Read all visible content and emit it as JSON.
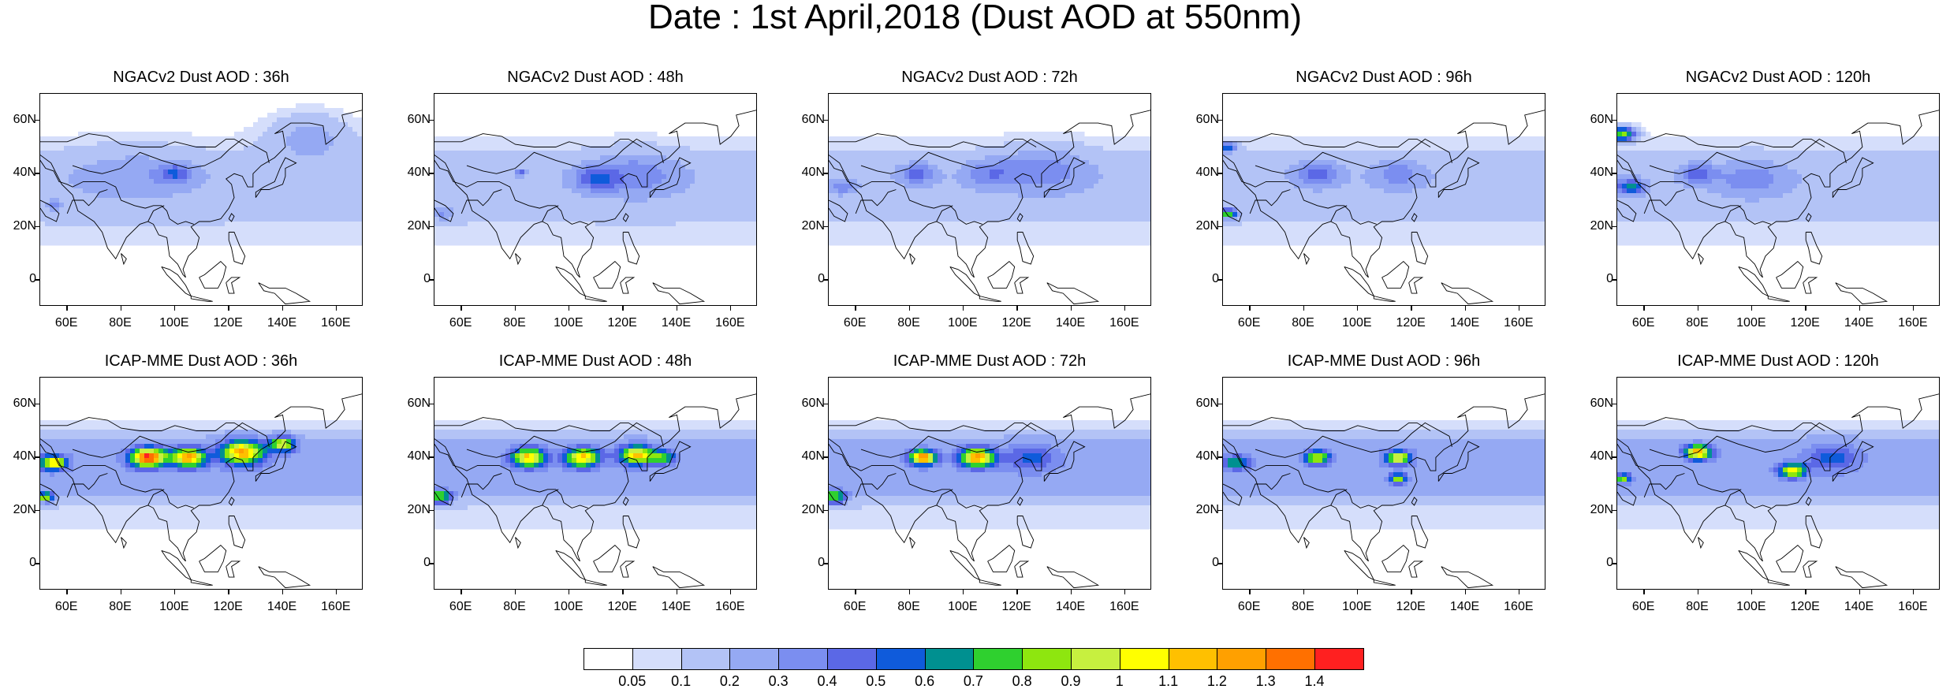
{
  "title": "Date : 1st April,2018 (Dust AOD at 550nm)",
  "axes": {
    "lat_labels": [
      "60N",
      "40N",
      "20N",
      "0"
    ],
    "lat_values": [
      60,
      40,
      20,
      0
    ],
    "lon_labels": [
      "60E",
      "80E",
      "100E",
      "120E",
      "140E",
      "160E"
    ],
    "lon_values": [
      60,
      80,
      100,
      120,
      140,
      160
    ],
    "lon_range": [
      50,
      170
    ],
    "lat_range": [
      -10,
      70
    ]
  },
  "panels": [
    {
      "title": "NGACv2 Dust AOD : 36h",
      "row": 0,
      "col": 0,
      "plumes": [
        [
          55,
          28,
          2,
          0.2
        ],
        [
          85,
          40,
          14,
          0.1
        ],
        [
          100,
          40,
          4,
          0.3
        ],
        [
          150,
          55,
          10,
          0.2
        ]
      ]
    },
    {
      "title": "NGACv2 Dust AOD : 48h",
      "row": 0,
      "col": 1,
      "plumes": [
        [
          53,
          25,
          3,
          0.2
        ],
        [
          82,
          40,
          1,
          0.6
        ],
        [
          110,
          38,
          5,
          0.3
        ],
        [
          125,
          40,
          10,
          0.2
        ]
      ]
    },
    {
      "title": "NGACv2 Dust AOD : 72h",
      "row": 0,
      "col": 2,
      "plumes": [
        [
          55,
          35,
          3,
          0.2
        ],
        [
          83,
          40,
          4,
          0.3
        ],
        [
          110,
          40,
          6,
          0.2
        ],
        [
          130,
          42,
          10,
          0.2
        ]
      ]
    },
    {
      "title": "NGACv2 Dust AOD : 96h",
      "row": 0,
      "col": 3,
      "plumes": [
        [
          52,
          50,
          2,
          0.5
        ],
        [
          52,
          25,
          2,
          0.7
        ],
        [
          85,
          40,
          5,
          0.3
        ],
        [
          115,
          40,
          6,
          0.2
        ]
      ]
    },
    {
      "title": "NGACv2 Dust AOD : 120h",
      "row": 0,
      "col": 4,
      "plumes": [
        [
          52,
          55,
          3,
          0.8
        ],
        [
          55,
          35,
          3,
          0.5
        ],
        [
          80,
          40,
          4,
          0.3
        ],
        [
          100,
          38,
          8,
          0.2
        ]
      ]
    },
    {
      "title": "ICAP-MME Dust AOD : 36h",
      "row": 1,
      "col": 0,
      "plumes": [
        [
          55,
          38,
          3,
          0.9
        ],
        [
          52,
          25,
          2,
          0.8
        ],
        [
          90,
          40,
          4,
          1.2
        ],
        [
          105,
          40,
          4,
          1.0
        ],
        [
          125,
          42,
          5,
          1.0
        ],
        [
          140,
          45,
          3,
          0.8
        ]
      ]
    },
    {
      "title": "ICAP-MME Dust AOD : 48h",
      "row": 1,
      "col": 1,
      "plumes": [
        [
          52,
          25,
          3,
          0.7
        ],
        [
          85,
          40,
          4,
          0.9
        ],
        [
          105,
          40,
          4,
          0.9
        ],
        [
          125,
          41,
          4,
          0.9
        ],
        [
          135,
          40,
          3,
          0.5
        ]
      ]
    },
    {
      "title": "ICAP-MME Dust AOD : 72h",
      "row": 1,
      "col": 2,
      "plumes": [
        [
          52,
          25,
          3,
          0.7
        ],
        [
          85,
          40,
          3,
          1.1
        ],
        [
          105,
          40,
          4,
          1.0
        ],
        [
          125,
          40,
          6,
          0.3
        ]
      ]
    },
    {
      "title": "ICAP-MME Dust AOD : 96h",
      "row": 1,
      "col": 3,
      "plumes": [
        [
          55,
          38,
          3,
          0.5
        ],
        [
          85,
          40,
          3,
          0.7
        ],
        [
          115,
          40,
          3,
          0.8
        ],
        [
          115,
          32,
          2,
          0.7
        ]
      ]
    },
    {
      "title": "ICAP-MME Dust AOD : 120h",
      "row": 1,
      "col": 4,
      "plumes": [
        [
          80,
          42,
          3,
          1.0
        ],
        [
          52,
          32,
          2,
          0.6
        ],
        [
          115,
          35,
          3,
          0.8
        ],
        [
          130,
          40,
          6,
          0.3
        ]
      ]
    }
  ],
  "colorbar": {
    "labels": [
      "0.05",
      "0.1",
      "0.2",
      "0.3",
      "0.4",
      "0.5",
      "0.6",
      "0.7",
      "0.8",
      "0.9",
      "1",
      "1.1",
      "1.2",
      "1.3",
      "1.4"
    ],
    "colors": [
      "#ffffff",
      "#d5defb",
      "#b3c3f6",
      "#95a9f3",
      "#7b8ef0",
      "#5b68e6",
      "#0f5bdb",
      "#009090",
      "#2fd02f",
      "#8ee60f",
      "#c7f03f",
      "#ffff00",
      "#ffc000",
      "#ffa000",
      "#ff7000",
      "#ff2020"
    ]
  }
}
